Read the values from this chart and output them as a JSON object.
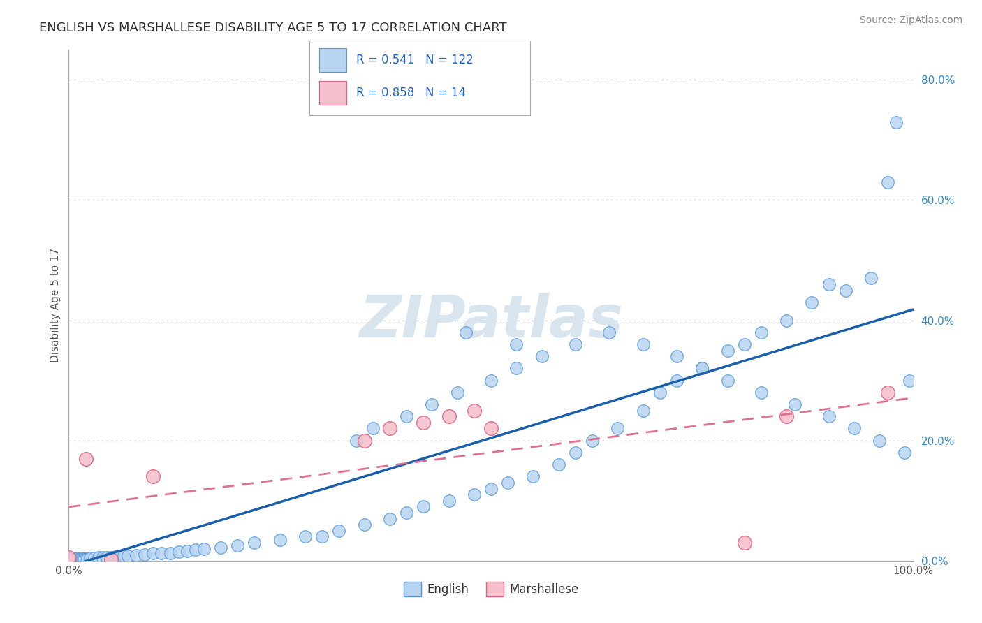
{
  "title": "ENGLISH VS MARSHALLESE DISABILITY AGE 5 TO 17 CORRELATION CHART",
  "source_text": "Source: ZipAtlas.com",
  "ylabel": "Disability Age 5 to 17",
  "xlim": [
    0.0,
    1.0
  ],
  "ylim": [
    0.0,
    0.85
  ],
  "ytick_vals": [
    0.0,
    0.2,
    0.4,
    0.6,
    0.8
  ],
  "english_R": 0.541,
  "english_N": 122,
  "marshallese_R": 0.858,
  "marshallese_N": 14,
  "english_color": "#b8d4f0",
  "english_edge_color": "#5599dd",
  "marshallese_color": "#f5c0cc",
  "marshallese_edge_color": "#e06080",
  "english_line_color": "#1a5faa",
  "marshallese_line_color": "#e07090",
  "watermark_color": "#d8e4ee",
  "background_color": "#ffffff",
  "grid_color": "#cccccc",
  "title_color": "#303030",
  "legend_color": "#2266cc",
  "legend_n_color": "#cc2222",
  "eng_x": [
    0.0,
    0.0,
    0.0,
    0.0,
    0.0,
    0.0,
    0.0,
    0.0,
    0.0,
    0.0,
    0.0,
    0.0,
    0.0,
    0.0,
    0.001,
    0.001,
    0.001,
    0.001,
    0.001,
    0.002,
    0.002,
    0.002,
    0.003,
    0.003,
    0.004,
    0.004,
    0.005,
    0.005,
    0.005,
    0.006,
    0.006,
    0.007,
    0.007,
    0.008,
    0.009,
    0.01,
    0.01,
    0.01,
    0.01,
    0.012,
    0.013,
    0.015,
    0.016,
    0.018,
    0.02,
    0.022,
    0.025,
    0.03,
    0.035,
    0.04,
    0.045,
    0.05,
    0.055,
    0.06,
    0.065,
    0.07,
    0.08,
    0.09,
    0.1,
    0.11,
    0.12,
    0.13,
    0.14,
    0.15,
    0.16,
    0.18,
    0.2,
    0.22,
    0.25,
    0.28,
    0.3,
    0.32,
    0.35,
    0.38,
    0.4,
    0.42,
    0.45,
    0.48,
    0.5,
    0.52,
    0.55,
    0.58,
    0.6,
    0.62,
    0.65,
    0.68,
    0.7,
    0.72,
    0.75,
    0.78,
    0.8,
    0.82,
    0.85,
    0.88,
    0.9,
    0.92,
    0.95,
    0.97,
    0.98,
    0.995,
    0.34,
    0.36,
    0.4,
    0.43,
    0.46,
    0.5,
    0.53,
    0.56,
    0.6,
    0.64,
    0.68,
    0.72,
    0.75,
    0.78,
    0.82,
    0.86,
    0.9,
    0.93,
    0.96,
    0.99,
    0.47,
    0.53
  ],
  "eng_y": [
    0.0,
    0.0,
    0.0,
    0.0,
    0.001,
    0.001,
    0.001,
    0.002,
    0.002,
    0.003,
    0.003,
    0.004,
    0.005,
    0.006,
    0.0,
    0.001,
    0.002,
    0.003,
    0.004,
    0.001,
    0.002,
    0.003,
    0.002,
    0.003,
    0.002,
    0.004,
    0.001,
    0.002,
    0.003,
    0.002,
    0.003,
    0.001,
    0.003,
    0.002,
    0.002,
    0.001,
    0.002,
    0.003,
    0.004,
    0.003,
    0.002,
    0.003,
    0.002,
    0.003,
    0.003,
    0.003,
    0.004,
    0.004,
    0.005,
    0.005,
    0.006,
    0.006,
    0.007,
    0.007,
    0.008,
    0.008,
    0.009,
    0.01,
    0.012,
    0.012,
    0.013,
    0.015,
    0.016,
    0.018,
    0.02,
    0.022,
    0.025,
    0.03,
    0.035,
    0.04,
    0.04,
    0.05,
    0.06,
    0.07,
    0.08,
    0.09,
    0.1,
    0.11,
    0.12,
    0.13,
    0.14,
    0.16,
    0.18,
    0.2,
    0.22,
    0.25,
    0.28,
    0.3,
    0.32,
    0.35,
    0.36,
    0.38,
    0.4,
    0.43,
    0.46,
    0.45,
    0.47,
    0.63,
    0.73,
    0.3,
    0.2,
    0.22,
    0.24,
    0.26,
    0.28,
    0.3,
    0.32,
    0.34,
    0.36,
    0.38,
    0.36,
    0.34,
    0.32,
    0.3,
    0.28,
    0.26,
    0.24,
    0.22,
    0.2,
    0.18,
    0.38,
    0.36
  ],
  "marsh_x": [
    0.0,
    0.0,
    0.02,
    0.05,
    0.1,
    0.35,
    0.38,
    0.42,
    0.45,
    0.48,
    0.5,
    0.8,
    0.85,
    0.97
  ],
  "marsh_y": [
    0.0,
    0.005,
    0.17,
    0.002,
    0.14,
    0.2,
    0.22,
    0.23,
    0.24,
    0.25,
    0.22,
    0.03,
    0.24,
    0.28
  ]
}
